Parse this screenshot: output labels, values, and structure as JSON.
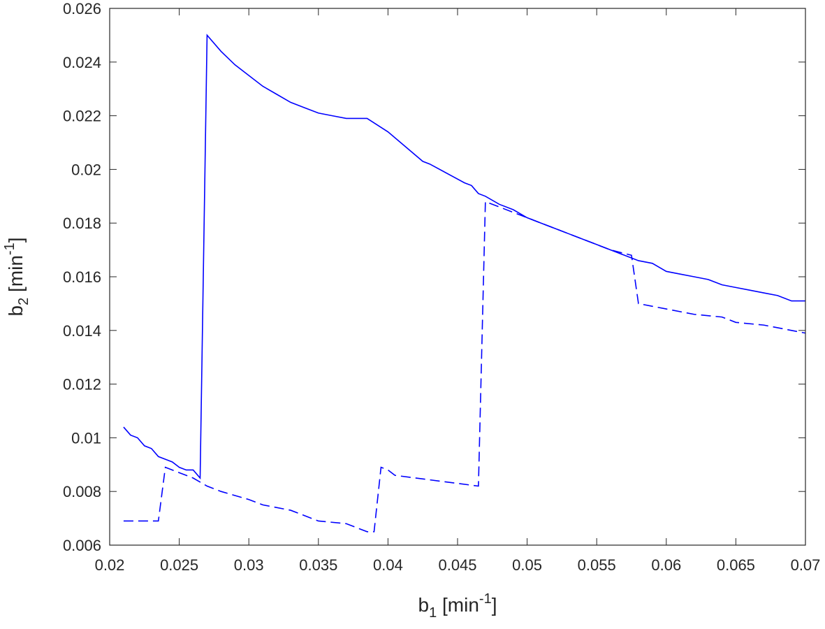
{
  "chart_data": {
    "type": "line",
    "xlabel": {
      "base": "b",
      "sub": "1",
      "mid": " [min",
      "sup": "-1",
      "end": "]"
    },
    "ylabel": {
      "base": "b",
      "sub": "2",
      "mid": " [min",
      "sup": "-1",
      "end": "]"
    },
    "xlim": [
      0.02,
      0.07
    ],
    "xticks": [
      0.02,
      0.025,
      0.03,
      0.035,
      0.04,
      0.045,
      0.05,
      0.055,
      0.06,
      0.065,
      0.07
    ],
    "ylim": [
      0.006,
      0.026
    ],
    "yticks": [
      0.006,
      0.008,
      0.01,
      0.012,
      0.014,
      0.016,
      0.018,
      0.02,
      0.022,
      0.024,
      0.026
    ],
    "series": [
      {
        "color": "#0000ff",
        "dash": false,
        "x": [
          0.021,
          0.0215,
          0.022,
          0.0225,
          0.023,
          0.0235,
          0.024,
          0.0245,
          0.025,
          0.0255,
          0.026,
          0.0265,
          0.027,
          0.028,
          0.029,
          0.03,
          0.031,
          0.032,
          0.033,
          0.034,
          0.035,
          0.036,
          0.037,
          0.0385,
          0.04,
          0.0425,
          0.043,
          0.0455,
          0.046,
          0.0465,
          0.047,
          0.048,
          0.049,
          0.05,
          0.051,
          0.052,
          0.053,
          0.054,
          0.055,
          0.056,
          0.057,
          0.058,
          0.059,
          0.06,
          0.061,
          0.062,
          0.063,
          0.064,
          0.065,
          0.066,
          0.067,
          0.068,
          0.069,
          0.07
        ],
        "values": [
          0.0104,
          0.0101,
          0.01,
          0.0097,
          0.0096,
          0.0093,
          0.0092,
          0.0091,
          0.0089,
          0.0088,
          0.0088,
          0.0085,
          0.025,
          0.0244,
          0.0239,
          0.0235,
          0.0231,
          0.0228,
          0.0225,
          0.0223,
          0.0221,
          0.022,
          0.0219,
          0.0219,
          0.0214,
          0.0203,
          0.0202,
          0.0195,
          0.0194,
          0.0191,
          0.019,
          0.0187,
          0.0185,
          0.0182,
          0.018,
          0.0178,
          0.0176,
          0.0174,
          0.0172,
          0.017,
          0.0168,
          0.0166,
          0.0165,
          0.0162,
          0.0161,
          0.016,
          0.0159,
          0.0157,
          0.0156,
          0.0155,
          0.0154,
          0.0153,
          0.0151,
          0.0151
        ]
      },
      {
        "color": "#0000ff",
        "dash": true,
        "x": [
          0.021,
          0.0235,
          0.024,
          0.025,
          0.026,
          0.027,
          0.028,
          0.03,
          0.031,
          0.033,
          0.035,
          0.037,
          0.0385,
          0.039,
          0.0395,
          0.04,
          0.0405,
          0.0465,
          0.047,
          0.048,
          0.05,
          0.052,
          0.054,
          0.056,
          0.0575,
          0.058,
          0.06,
          0.062,
          0.064,
          0.065,
          0.067,
          0.07
        ],
        "values": [
          0.0069,
          0.0069,
          0.0089,
          0.0087,
          0.0085,
          0.0082,
          0.008,
          0.0077,
          0.0075,
          0.0073,
          0.0069,
          0.0068,
          0.0065,
          0.0065,
          0.0089,
          0.0088,
          0.0086,
          0.0082,
          0.0188,
          0.0186,
          0.0182,
          0.0178,
          0.0174,
          0.017,
          0.0168,
          0.015,
          0.0148,
          0.0146,
          0.0145,
          0.0143,
          0.0142,
          0.0139
        ]
      }
    ]
  }
}
